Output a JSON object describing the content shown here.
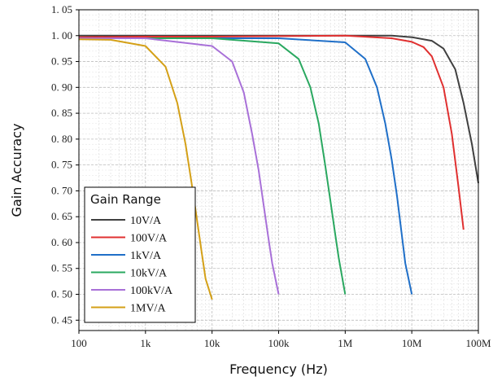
{
  "chart_data": {
    "type": "line",
    "title": "",
    "xlabel": "Frequency (Hz)",
    "ylabel": "Gain Accuracy",
    "xscale": "log",
    "xlim": [
      100,
      100000000
    ],
    "ylim": [
      0.43,
      1.05
    ],
    "x_ticks": [
      100,
      1000,
      10000,
      100000,
      1000000,
      10000000,
      100000000
    ],
    "x_tick_labels": [
      "100",
      "1k",
      "10k",
      "100k",
      "1M",
      "10M",
      "100M"
    ],
    "y_ticks": [
      0.45,
      0.5,
      0.55,
      0.6,
      0.65,
      0.7,
      0.75,
      0.8,
      0.85,
      0.9,
      0.95,
      1.0,
      1.05
    ],
    "y_tick_labels": [
      "0. 45",
      "0. 50",
      "0. 55",
      "0. 60",
      "0. 65",
      "0. 70",
      "0. 75",
      "0. 80",
      "0. 85",
      "0. 90",
      "0. 95",
      "1. 00",
      "1. 05"
    ],
    "grid": true,
    "legend": {
      "title": "Gain Range",
      "position": "bottom-left"
    },
    "series": [
      {
        "name": "10V/A",
        "color": "#404040",
        "x": [
          100,
          1000,
          10000,
          100000,
          1000000,
          5000000,
          10000000,
          20000000,
          30000000,
          45000000,
          60000000,
          80000000,
          100000000
        ],
        "y": [
          1.0,
          1.0,
          1.0,
          1.0,
          1.0,
          1.0,
          0.997,
          0.99,
          0.975,
          0.935,
          0.87,
          0.79,
          0.715
        ]
      },
      {
        "name": "100V/A",
        "color": "#e03030",
        "x": [
          100,
          1000,
          10000,
          100000,
          1000000,
          5000000,
          10000000,
          15000000,
          20000000,
          30000000,
          40000000,
          50000000,
          60000000
        ],
        "y": [
          0.997,
          0.998,
          0.998,
          0.999,
          1.0,
          0.995,
          0.988,
          0.978,
          0.96,
          0.9,
          0.81,
          0.71,
          0.625
        ]
      },
      {
        "name": "1kV/A",
        "color": "#1f6fc8",
        "x": [
          100,
          1000,
          10000,
          100000,
          1000000,
          2000000,
          3000000,
          4000000,
          5000000,
          6000000,
          7000000,
          8000000,
          10000000
        ],
        "y": [
          0.995,
          0.995,
          0.995,
          0.995,
          0.987,
          0.955,
          0.9,
          0.83,
          0.76,
          0.69,
          0.62,
          0.56,
          0.5
        ]
      },
      {
        "name": "10kV/A",
        "color": "#2aa860",
        "x": [
          100,
          1000,
          10000,
          100000,
          200000,
          300000,
          400000,
          500000,
          600000,
          700000,
          800000,
          1000000
        ],
        "y": [
          0.995,
          0.995,
          0.995,
          0.985,
          0.955,
          0.9,
          0.83,
          0.75,
          0.68,
          0.62,
          0.57,
          0.5
        ]
      },
      {
        "name": "100kV/A",
        "color": "#a870d8",
        "x": [
          100,
          1000,
          10000,
          20000,
          30000,
          40000,
          50000,
          60000,
          70000,
          80000,
          100000
        ],
        "y": [
          0.995,
          0.995,
          0.98,
          0.95,
          0.89,
          0.81,
          0.74,
          0.67,
          0.61,
          0.56,
          0.5
        ]
      },
      {
        "name": "1MV/A",
        "color": "#d4a017",
        "x": [
          100,
          300,
          1000,
          2000,
          3000,
          4000,
          5000,
          6000,
          7000,
          8000,
          10000
        ],
        "y": [
          0.993,
          0.992,
          0.98,
          0.94,
          0.87,
          0.79,
          0.71,
          0.64,
          0.58,
          0.53,
          0.49
        ]
      }
    ]
  }
}
